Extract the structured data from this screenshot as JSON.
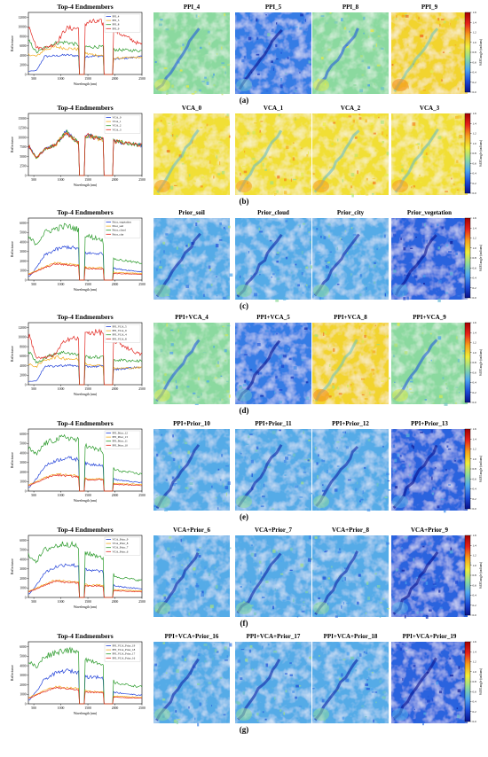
{
  "rows": [
    {
      "panel_label": "(a)",
      "spectral": {
        "title": "Top-4 Endmembers",
        "xlabel": "Wavelength (nm)",
        "ylabel": "Reflectance",
        "yticks": [
          "0",
          "2000",
          "4000",
          "6000",
          "8000",
          "10000",
          "12000"
        ],
        "xticks": [
          "500",
          "1000",
          "1500",
          "2000",
          "2500"
        ],
        "legend": [
          "PPI_4",
          "PPI_5",
          "PPI_8",
          "PPI_9"
        ],
        "colors": [
          "#1f3fd8",
          "#f2a91a",
          "#2a9a2a",
          "#e2261f"
        ]
      },
      "maps": [
        "PPI_4",
        "PPI_5",
        "PPI_8",
        "PPI_9"
      ],
      "map_levels": [
        0.42,
        0.22,
        0.42,
        0.62
      ]
    },
    {
      "panel_label": "(b)",
      "spectral": {
        "title": "Top-4 Endmembers",
        "xlabel": "Wavelength (nm)",
        "ylabel": "Reflectance",
        "yticks": [
          "0",
          "2500",
          "5000",
          "7500",
          "10000",
          "12500",
          "15000"
        ],
        "xticks": [
          "500",
          "1000",
          "1500",
          "2000",
          "2500"
        ],
        "legend": [
          "VCA_0",
          "VCA_1",
          "VCA_2",
          "VCA_3"
        ],
        "colors": [
          "#1f3fd8",
          "#f2a91a",
          "#2a9a2a",
          "#e2261f"
        ]
      },
      "maps": [
        "VCA_0",
        "VCA_1",
        "VCA_2",
        "VCA_3"
      ],
      "map_levels": [
        0.6,
        0.6,
        0.6,
        0.6
      ]
    },
    {
      "panel_label": "(c)",
      "spectral": {
        "title": "Top-4 Endmembers",
        "xlabel": "Wavelength (nm)",
        "ylabel": "Reflectance",
        "yticks": [
          "0",
          "1000",
          "2000",
          "3000",
          "4000",
          "5000",
          "6000"
        ],
        "xticks": [
          "500",
          "1000",
          "1500",
          "2000",
          "2500"
        ],
        "legend": [
          "Prior_vegetation",
          "Prior_soil",
          "Prior_cloud",
          "Prior_city"
        ],
        "colors": [
          "#1f3fd8",
          "#f2a91a",
          "#2a9a2a",
          "#e2261f"
        ]
      },
      "maps": [
        "Prior_soil",
        "Prior_cloud",
        "Prior_city",
        "Prior_vegetation"
      ],
      "map_levels": [
        0.3,
        0.3,
        0.3,
        0.18
      ]
    },
    {
      "panel_label": "(d)",
      "spectral": {
        "title": "Top-4 Endmembers",
        "xlabel": "Wavelength (nm)",
        "ylabel": "Reflectance",
        "yticks": [
          "0",
          "2000",
          "4000",
          "6000",
          "8000",
          "10000",
          "12000"
        ],
        "xticks": [
          "500",
          "1000",
          "1500",
          "2000",
          "2500"
        ],
        "legend": [
          "PPI_VCA_5",
          "PPI_VCA_9",
          "PPI_VCA_4",
          "PPI_VCA_8"
        ],
        "colors": [
          "#1f3fd8",
          "#f2a91a",
          "#2a9a2a",
          "#e2261f"
        ]
      },
      "maps": [
        "PPI+VCA_4",
        "PPI+VCA_5",
        "PPI+VCA_8",
        "PPI+VCA_9"
      ],
      "map_levels": [
        0.42,
        0.22,
        0.62,
        0.42
      ]
    },
    {
      "panel_label": "(e)",
      "spectral": {
        "title": "Top-4 Endmembers",
        "xlabel": "Wavelength (nm)",
        "ylabel": "Reflectance",
        "yticks": [
          "0",
          "1000",
          "2000",
          "3000",
          "4000",
          "5000",
          "6000"
        ],
        "xticks": [
          "500",
          "1000",
          "1500",
          "2000",
          "2500"
        ],
        "legend": [
          "PPI_Prior_12",
          "PPI_Prior_13",
          "PPI_Prior_11",
          "PPI_Prior_10"
        ],
        "colors": [
          "#1f3fd8",
          "#f2a91a",
          "#2a9a2a",
          "#e2261f"
        ]
      },
      "maps": [
        "PPI+Prior_10",
        "PPI+Prior_11",
        "PPI+Prior_12",
        "PPI+Prior_13"
      ],
      "map_levels": [
        0.3,
        0.3,
        0.3,
        0.18
      ]
    },
    {
      "panel_label": "(f)",
      "spectral": {
        "title": "Top-4 Endmembers",
        "xlabel": "Wavelength (nm)",
        "ylabel": "Reflectance",
        "yticks": [
          "0",
          "1000",
          "2000",
          "3000",
          "4000",
          "5000",
          "6000"
        ],
        "xticks": [
          "500",
          "1000",
          "1500",
          "2000",
          "2500"
        ],
        "legend": [
          "VCA_Prior_9",
          "VCA_Prior_8",
          "VCA_Prior_7",
          "VCA_Prior_6"
        ],
        "colors": [
          "#1f3fd8",
          "#f2a91a",
          "#2a9a2a",
          "#e2261f"
        ]
      },
      "maps": [
        "VCA+Prior_6",
        "VCA+Prior_7",
        "VCA+Prior_8",
        "VCA+Prior_9"
      ],
      "map_levels": [
        0.3,
        0.3,
        0.3,
        0.18
      ]
    },
    {
      "panel_label": "(g)",
      "spectral": {
        "title": "Top-4 Endmembers",
        "xlabel": "Wavelength (nm)",
        "ylabel": "Reflectance",
        "yticks": [
          "0",
          "1000",
          "2000",
          "3000",
          "4000",
          "5000",
          "6000"
        ],
        "xticks": [
          "500",
          "1000",
          "1500",
          "2000",
          "2500"
        ],
        "legend": [
          "PPI_VCA_Prior_19",
          "PPI_VCA_Prior_18",
          "PPI_VCA_Prior_17",
          "PPI_VCA_Prior_16"
        ],
        "colors": [
          "#1f3fd8",
          "#f2a91a",
          "#2a9a2a",
          "#e2261f"
        ]
      },
      "maps": [
        "PPI+VCA+Prior_16",
        "PPI+VCA+Prior_17",
        "PPI+VCA+Prior_18",
        "PPI+VCA+Prior_19"
      ],
      "map_levels": [
        0.3,
        0.3,
        0.3,
        0.18
      ]
    }
  ],
  "colorbar": {
    "label": "SAM angle (radians)",
    "ticks": [
      "0.0",
      "0.2",
      "0.4",
      "0.6",
      "0.8",
      "1.0",
      "1.2",
      "1.4",
      "1.6"
    ],
    "colors": [
      "#08108c",
      "#1c4bd8",
      "#4da6f0",
      "#8fdc9a",
      "#f0ee3a",
      "#f7a21b",
      "#e8231a",
      "#a40000"
    ]
  },
  "chart_data": {
    "type": "line",
    "x_range": [
      400,
      2500
    ],
    "note_free": true,
    "panels": [
      {
        "label": "(a)",
        "ylim": [
          0,
          12000
        ],
        "series": [
          {
            "name": "PPI_4",
            "profile": [
              700,
              800,
              3800,
              3900,
              4100,
              3900,
              3800,
              3900,
              3200,
              3700
            ]
          },
          {
            "name": "PPI_5",
            "profile": [
              4200,
              3800,
              5200,
              5800,
              5500,
              5300,
              4300,
              4000,
              3400,
              3600
            ]
          },
          {
            "name": "PPI_8",
            "profile": [
              6900,
              4600,
              5600,
              6600,
              6800,
              6200,
              5800,
              5800,
              5200,
              5000
            ]
          },
          {
            "name": "PPI_9",
            "profile": [
              10200,
              5600,
              5600,
              6400,
              9700,
              9700,
              11000,
              11000,
              9200,
              6400
            ]
          }
        ]
      },
      {
        "label": "(b)",
        "ylim": [
          0,
          15000
        ],
        "series": [
          {
            "name": "VCA_0",
            "profile": [
              7500,
              4500,
              7000,
              8000,
              11500,
              8500,
              10500,
              9500,
              9000,
              8000
            ]
          },
          {
            "name": "VCA_1",
            "profile": [
              7500,
              4500,
              7000,
              8000,
              11500,
              8500,
              10500,
              9500,
              9000,
              8000
            ]
          },
          {
            "name": "VCA_2",
            "profile": [
              7500,
              4500,
              7000,
              8000,
              11500,
              8500,
              10500,
              9500,
              9000,
              8000
            ]
          },
          {
            "name": "VCA_3",
            "profile": [
              7500,
              4500,
              7000,
              8000,
              11500,
              8500,
              10500,
              9500,
              9000,
              8000
            ]
          }
        ]
      },
      {
        "label": "(c)",
        "ylim": [
          0,
          6000
        ],
        "series": [
          {
            "name": "Prior_vegetation",
            "profile": [
              400,
              1300,
              2600,
              3200,
              3500,
              3300,
              2800,
              2800,
              1200,
              900
            ]
          },
          {
            "name": "Prior_soil",
            "profile": [
              700,
              1000,
              1400,
              1800,
              1700,
              1600,
              1300,
              1300,
              800,
              700
            ]
          },
          {
            "name": "Prior_cloud",
            "profile": [
              4400,
              3800,
              5000,
              5400,
              5700,
              5300,
              4600,
              4300,
              2200,
              1800
            ]
          },
          {
            "name": "Prior_city",
            "profile": [
              600,
              900,
              1300,
              1700,
              1600,
              1500,
              1200,
              1200,
              700,
              600
            ]
          }
        ]
      },
      {
        "label": "(d)",
        "ylim": [
          0,
          12000
        ],
        "series": [
          {
            "name": "PPI_VCA_5",
            "profile": [
              700,
              800,
              3800,
              3900,
              4100,
              3900,
              3800,
              3900,
              3200,
              3700
            ]
          },
          {
            "name": "PPI_VCA_9",
            "profile": [
              4200,
              3800,
              5200,
              5800,
              5500,
              5300,
              4300,
              4000,
              3400,
              3600
            ]
          },
          {
            "name": "PPI_VCA_4",
            "profile": [
              6900,
              4600,
              5600,
              6600,
              6800,
              6200,
              5800,
              5800,
              5200,
              5000
            ]
          },
          {
            "name": "PPI_VCA_8",
            "profile": [
              10200,
              5600,
              5600,
              6400,
              9700,
              9700,
              11000,
              11000,
              9200,
              6400
            ]
          }
        ]
      },
      {
        "label": "(e)",
        "ylim": [
          0,
          6000
        ],
        "series": [
          {
            "name": "PPI_Prior_12",
            "profile": [
              400,
              1300,
              2600,
              3200,
              3500,
              3300,
              2800,
              2800,
              1200,
              900
            ]
          },
          {
            "name": "PPI_Prior_13",
            "profile": [
              700,
              1000,
              1400,
              1800,
              1700,
              1600,
              1300,
              1300,
              800,
              700
            ]
          },
          {
            "name": "PPI_Prior_11",
            "profile": [
              4400,
              3800,
              5000,
              5400,
              5700,
              5300,
              4600,
              4300,
              2200,
              1800
            ]
          },
          {
            "name": "PPI_Prior_10",
            "profile": [
              600,
              900,
              1300,
              1700,
              1600,
              1500,
              1200,
              1200,
              700,
              600
            ]
          }
        ]
      },
      {
        "label": "(f)",
        "ylim": [
          0,
          6000
        ],
        "series": [
          {
            "name": "VCA_Prior_9",
            "profile": [
              400,
              1300,
              2600,
              3200,
              3500,
              3300,
              2800,
              2800,
              1200,
              900
            ]
          },
          {
            "name": "VCA_Prior_8",
            "profile": [
              700,
              1000,
              1400,
              1800,
              1700,
              1600,
              1300,
              1300,
              800,
              700
            ]
          },
          {
            "name": "VCA_Prior_7",
            "profile": [
              4400,
              3800,
              5000,
              5400,
              5700,
              5300,
              4600,
              4300,
              2200,
              1800
            ]
          },
          {
            "name": "VCA_Prior_6",
            "profile": [
              600,
              900,
              1300,
              1700,
              1600,
              1500,
              1200,
              1200,
              700,
              600
            ]
          }
        ]
      },
      {
        "label": "(g)",
        "ylim": [
          0,
          6000
        ],
        "series": [
          {
            "name": "PPI_VCA_Prior_19",
            "profile": [
              400,
              1300,
              2600,
              3200,
              3500,
              3300,
              2800,
              2800,
              1200,
              900
            ]
          },
          {
            "name": "PPI_VCA_Prior_18",
            "profile": [
              700,
              1000,
              1400,
              1800,
              1700,
              1600,
              1300,
              1300,
              800,
              700
            ]
          },
          {
            "name": "PPI_VCA_Prior_17",
            "profile": [
              4400,
              3800,
              5000,
              5400,
              5700,
              5300,
              4600,
              4300,
              2200,
              1800
            ]
          },
          {
            "name": "PPI_VCA_Prior_16",
            "profile": [
              600,
              900,
              1300,
              1700,
              1600,
              1500,
              1200,
              1200,
              700,
              600
            ]
          }
        ]
      }
    ],
    "profile_x": [
      420,
      550,
      700,
      900,
      1100,
      1330,
      1500,
      1750,
      2000,
      2450
    ]
  }
}
